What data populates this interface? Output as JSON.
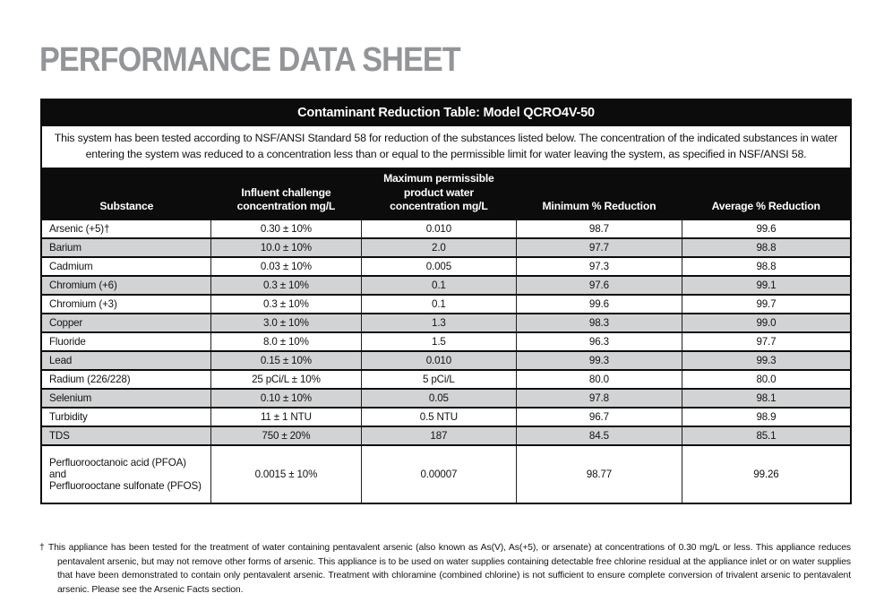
{
  "page_title": "PERFORMANCE DATA SHEET",
  "contaminant_table": {
    "title": "Contaminant Reduction Table: Model QCRO4V-50",
    "description": "This system has been tested according to NSF/ANSI Standard 58 for reduction of the substances listed below. The concentration of the indicated substances in water entering the system was reduced to a concentration less than or equal to the permissible limit for water leaving the system, as specified in NSF/ANSI 58.",
    "columns": {
      "substance": "Substance",
      "influent": "Influent challenge\nconcentration mg/L",
      "max_product": "Maximum permissible\nproduct water\nconcentration mg/L",
      "min_reduction": "Minimum % Reduction",
      "avg_reduction": "Average % Reduction"
    },
    "rows": [
      {
        "substance": "Arsenic (+5)†",
        "influent": "0.30 ± 10%",
        "max_product": "0.010",
        "min_reduction": "98.7",
        "avg_reduction": "99.6"
      },
      {
        "substance": "Barium",
        "influent": "10.0 ± 10%",
        "max_product": "2.0",
        "min_reduction": "97.7",
        "avg_reduction": "98.8"
      },
      {
        "substance": "Cadmium",
        "influent": "0.03 ± 10%",
        "max_product": "0.005",
        "min_reduction": "97.3",
        "avg_reduction": "98.8"
      },
      {
        "substance": "Chromium (+6)",
        "influent": "0.3 ± 10%",
        "max_product": "0.1",
        "min_reduction": "97.6",
        "avg_reduction": "99.1"
      },
      {
        "substance": "Chromium (+3)",
        "influent": "0.3 ± 10%",
        "max_product": "0.1",
        "min_reduction": "99.6",
        "avg_reduction": "99.7"
      },
      {
        "substance": "Copper",
        "influent": "3.0 ± 10%",
        "max_product": "1.3",
        "min_reduction": "98.3",
        "avg_reduction": "99.0"
      },
      {
        "substance": "Fluoride",
        "influent": "8.0 ± 10%",
        "max_product": "1.5",
        "min_reduction": "96.3",
        "avg_reduction": "97.7"
      },
      {
        "substance": "Lead",
        "influent": "0.15 ± 10%",
        "max_product": "0.010",
        "min_reduction": "99.3",
        "avg_reduction": "99.3"
      },
      {
        "substance": "Radium (226/228)",
        "influent": "25 pCi/L ± 10%",
        "max_product": "5 pCi/L",
        "min_reduction": "80.0",
        "avg_reduction": "80.0"
      },
      {
        "substance": "Selenium",
        "influent": "0.10 ± 10%",
        "max_product": "0.05",
        "min_reduction": "97.8",
        "avg_reduction": "98.1"
      },
      {
        "substance": "Turbidity",
        "influent": "11 ± 1 NTU",
        "max_product": "0.5 NTU",
        "min_reduction": "96.7",
        "avg_reduction": "98.9"
      },
      {
        "substance": "TDS",
        "influent": "750 ± 20%",
        "max_product": "187",
        "min_reduction": "84.5",
        "avg_reduction": "85.1"
      },
      {
        "substance": "Perfluorooctanoic acid (PFOA) and\nPerfluorooctane sulfonate (PFOS)",
        "influent": "0.0015 ± 10%",
        "max_product": "0.00007",
        "min_reduction": "98.77",
        "avg_reduction": "99.26"
      }
    ]
  },
  "footnote": "† This appliance has been tested for the treatment of water containing pentavalent arsenic (also known as As(V), As(+5), or arsenate) at concentrations of 0.30 mg/L or less. This appliance reduces pentavalent arsenic, but may not remove other forms of arsenic. This appliance is to be used on water supplies containing detectable free chlorine residual at the appliance inlet or on water supplies that have been demonstrated to contain only pentavalent arsenic. Treatment with chloramine (combined chlorine) is not sufficient to ensure complete conversion of trivalent arsenic to pentavalent arsenic. Please see the Arsenic Facts section.",
  "colors": {
    "title_gray": "#939598",
    "header_black": "#0d0c0d",
    "row_alt_gray": "#d1d3d4"
  }
}
